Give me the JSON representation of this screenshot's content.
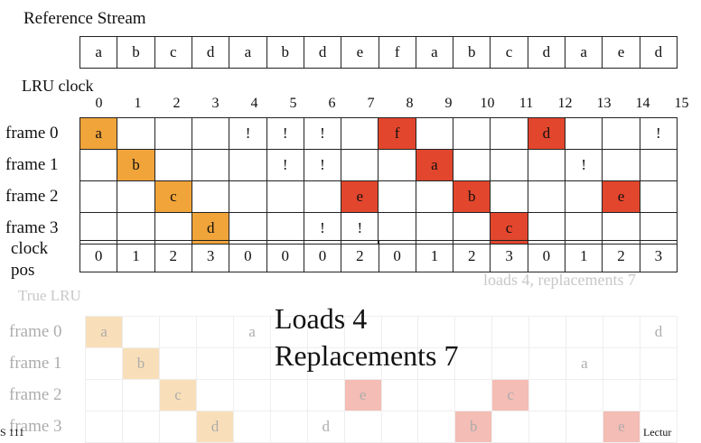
{
  "header": {
    "reference_stream_label": "Reference Stream",
    "lru_clock_label": "LRU clock"
  },
  "stream": [
    "a",
    "b",
    "c",
    "d",
    "a",
    "b",
    "d",
    "e",
    "f",
    "a",
    "b",
    "c",
    "d",
    "a",
    "e",
    "d"
  ],
  "clock_ticks": [
    "0",
    "1",
    "2",
    "3",
    "4",
    "5",
    "6",
    "7",
    "8",
    "9",
    "10",
    "11",
    "12",
    "13",
    "14",
    "15"
  ],
  "frames": [
    {
      "label": "frame 0",
      "cells": [
        "a",
        "",
        "",
        "",
        "!",
        "!",
        "!",
        "",
        "f",
        "",
        "",
        "",
        "d",
        "",
        "",
        "!"
      ],
      "colors": [
        "orange",
        "",
        "",
        "",
        "",
        "",
        "",
        "",
        "red",
        "",
        "",
        "",
        "red",
        "",
        "",
        ""
      ]
    },
    {
      "label": "frame 1",
      "cells": [
        "",
        "b",
        "",
        "",
        "",
        "!",
        "!",
        "",
        "",
        "a",
        "",
        "",
        "",
        "!",
        "",
        ""
      ],
      "colors": [
        "",
        "orange",
        "",
        "",
        "",
        "",
        "",
        "",
        "",
        "red",
        "",
        "",
        "",
        "",
        "",
        ""
      ]
    },
    {
      "label": "frame 2",
      "cells": [
        "",
        "",
        "c",
        "",
        "",
        "",
        "",
        "e",
        "",
        "",
        "b",
        "",
        "",
        "",
        "e",
        ""
      ],
      "colors": [
        "",
        "",
        "orange",
        "",
        "",
        "",
        "",
        "red",
        "",
        "",
        "red",
        "",
        "",
        "",
        "red",
        ""
      ]
    },
    {
      "label": "frame 3",
      "cells": [
        "",
        "",
        "",
        "d",
        "",
        "",
        "!",
        "!",
        "",
        "",
        "",
        "c",
        "",
        "",
        "",
        ""
      ],
      "colors": [
        "",
        "",
        "",
        "orange",
        "",
        "",
        "",
        "",
        "",
        "",
        "",
        "red",
        "",
        "",
        "",
        ""
      ]
    }
  ],
  "clock_pos": {
    "label_line1": "clock",
    "label_line2": "pos",
    "values": [
      "0",
      "1",
      "2",
      "3",
      "0",
      "0",
      "0",
      "2",
      "0",
      "1",
      "2",
      "3",
      "0",
      "1",
      "2",
      "3"
    ]
  },
  "overlay": {
    "loads": "Loads 4",
    "replacements": "Replacements 7",
    "ghost_summary": "loads 4, replacements 7"
  },
  "ghost": {
    "true_lru_label": "True LRU",
    "frame_labels": [
      "frame 0",
      "frame 1",
      "frame 2",
      "frame 3"
    ],
    "rows": [
      [
        "a",
        "",
        "",
        "",
        "a",
        "",
        "",
        "",
        "",
        "",
        "",
        "",
        "",
        "",
        "",
        "d"
      ],
      [
        "",
        "b",
        "",
        "",
        "",
        "",
        "",
        "",
        "",
        "",
        "",
        "",
        "",
        "a",
        "",
        ""
      ],
      [
        "",
        "",
        "c",
        "",
        "",
        "",
        "",
        "e",
        "",
        "",
        "",
        "c",
        "",
        "",
        "",
        ""
      ],
      [
        "",
        "",
        "",
        "d",
        "",
        "",
        "d",
        "",
        "",
        "",
        "b",
        "",
        "",
        "",
        "e",
        ""
      ]
    ],
    "colors": [
      [
        "orange",
        "",
        "",
        "",
        "",
        "",
        "",
        "",
        "",
        "",
        "",
        "",
        "",
        "",
        "",
        ""
      ],
      [
        "",
        "orange",
        "",
        "",
        "",
        "",
        "",
        "",
        "",
        "",
        "",
        "",
        "",
        "",
        "",
        ""
      ],
      [
        "",
        "",
        "orange",
        "",
        "",
        "",
        "",
        "red",
        "",
        "",
        "",
        "red",
        "",
        "",
        "",
        ""
      ],
      [
        "",
        "",
        "",
        "orange",
        "",
        "",
        "",
        "",
        "",
        "",
        "red",
        "",
        "",
        "",
        "red",
        ""
      ]
    ],
    "footer_left": "S 111",
    "footer_right": "Lectur"
  },
  "colors": {
    "orange": "#f0a43a",
    "red": "#e2462d"
  }
}
